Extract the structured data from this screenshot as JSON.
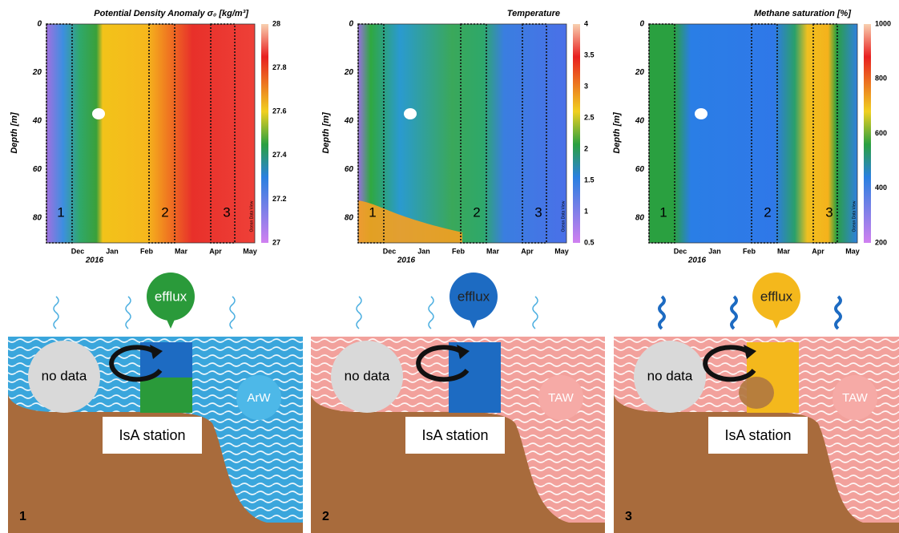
{
  "plots": [
    {
      "title": "Potential Density Anomaly σ₀ [kg/m³]",
      "y_label": "Depth [m]",
      "y_ticks": [
        "0",
        "20",
        "40",
        "60",
        "80"
      ],
      "x_ticks": [
        "Dec",
        "Jan",
        "Feb",
        "Mar",
        "Apr",
        "May"
      ],
      "year": "2016",
      "colorbar_ticks": [
        "28",
        "27.8",
        "27.6",
        "27.4",
        "27.2",
        "27"
      ],
      "zones": [
        "1",
        "2",
        "3"
      ],
      "watermark": "Ocean Data View"
    },
    {
      "title": "Temperature",
      "y_label": "Depth [m]",
      "y_ticks": [
        "0",
        "20",
        "40",
        "60",
        "80"
      ],
      "x_ticks": [
        "Dec",
        "Jan",
        "Feb",
        "Mar",
        "Apr",
        "May"
      ],
      "year": "2016",
      "colorbar_ticks": [
        "4",
        "3.5",
        "3",
        "2.5",
        "2",
        "1.5",
        "1",
        "0.5"
      ],
      "zones": [
        "1",
        "2",
        "3"
      ],
      "watermark": "Ocean Data View"
    },
    {
      "title": "Methane saturation [%]",
      "y_label": "Depth [m]",
      "y_ticks": [
        "0",
        "20",
        "40",
        "60",
        "80"
      ],
      "x_ticks": [
        "Dec",
        "Jan",
        "Feb",
        "Mar",
        "Apr",
        "May"
      ],
      "year": "2016",
      "colorbar_ticks": [
        "1000",
        "800",
        "600",
        "400",
        "200"
      ],
      "zones": [
        "1",
        "2",
        "3"
      ],
      "watermark": "Ocean Data View"
    }
  ],
  "diagrams": [
    {
      "number": "1",
      "bubble": "efflux",
      "no_data": "no data",
      "station": "IsA station",
      "water": "ArW"
    },
    {
      "number": "2",
      "bubble": "efflux",
      "no_data": "no data",
      "station": "IsA station",
      "water": "TAW"
    },
    {
      "number": "3",
      "bubble": "efflux",
      "no_data": "no data",
      "station": "IsA station",
      "water": "TAW"
    }
  ]
}
